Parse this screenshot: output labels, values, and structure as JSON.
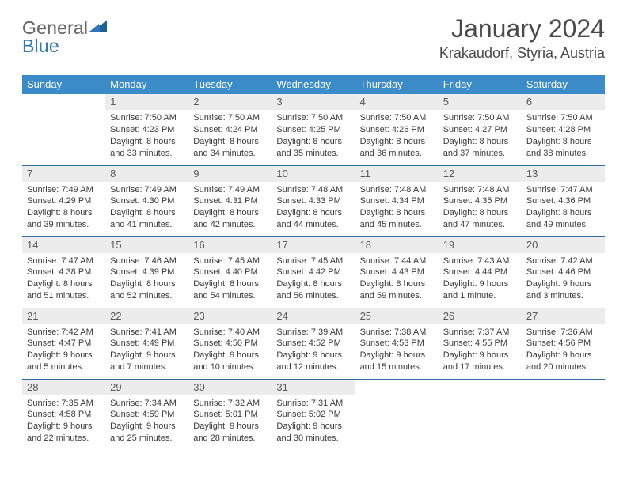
{
  "logo": {
    "general": "General",
    "blue": "Blue"
  },
  "title": "January 2024",
  "location": "Krakaudorf, Styria, Austria",
  "colors": {
    "header_bg": "#3b8bc9",
    "header_text": "#ffffff",
    "daynum_bg": "#ececec",
    "cell_border": "#2e6fa8",
    "logo_blue": "#2e77b8",
    "logo_gray": "#6a6a6a"
  },
  "days_of_week": [
    "Sunday",
    "Monday",
    "Tuesday",
    "Wednesday",
    "Thursday",
    "Friday",
    "Saturday"
  ],
  "weeks": [
    [
      null,
      {
        "n": "1",
        "sunrise": "Sunrise: 7:50 AM",
        "sunset": "Sunset: 4:23 PM",
        "day1": "Daylight: 8 hours",
        "day2": "and 33 minutes."
      },
      {
        "n": "2",
        "sunrise": "Sunrise: 7:50 AM",
        "sunset": "Sunset: 4:24 PM",
        "day1": "Daylight: 8 hours",
        "day2": "and 34 minutes."
      },
      {
        "n": "3",
        "sunrise": "Sunrise: 7:50 AM",
        "sunset": "Sunset: 4:25 PM",
        "day1": "Daylight: 8 hours",
        "day2": "and 35 minutes."
      },
      {
        "n": "4",
        "sunrise": "Sunrise: 7:50 AM",
        "sunset": "Sunset: 4:26 PM",
        "day1": "Daylight: 8 hours",
        "day2": "and 36 minutes."
      },
      {
        "n": "5",
        "sunrise": "Sunrise: 7:50 AM",
        "sunset": "Sunset: 4:27 PM",
        "day1": "Daylight: 8 hours",
        "day2": "and 37 minutes."
      },
      {
        "n": "6",
        "sunrise": "Sunrise: 7:50 AM",
        "sunset": "Sunset: 4:28 PM",
        "day1": "Daylight: 8 hours",
        "day2": "and 38 minutes."
      }
    ],
    [
      {
        "n": "7",
        "sunrise": "Sunrise: 7:49 AM",
        "sunset": "Sunset: 4:29 PM",
        "day1": "Daylight: 8 hours",
        "day2": "and 39 minutes."
      },
      {
        "n": "8",
        "sunrise": "Sunrise: 7:49 AM",
        "sunset": "Sunset: 4:30 PM",
        "day1": "Daylight: 8 hours",
        "day2": "and 41 minutes."
      },
      {
        "n": "9",
        "sunrise": "Sunrise: 7:49 AM",
        "sunset": "Sunset: 4:31 PM",
        "day1": "Daylight: 8 hours",
        "day2": "and 42 minutes."
      },
      {
        "n": "10",
        "sunrise": "Sunrise: 7:48 AM",
        "sunset": "Sunset: 4:33 PM",
        "day1": "Daylight: 8 hours",
        "day2": "and 44 minutes."
      },
      {
        "n": "11",
        "sunrise": "Sunrise: 7:48 AM",
        "sunset": "Sunset: 4:34 PM",
        "day1": "Daylight: 8 hours",
        "day2": "and 45 minutes."
      },
      {
        "n": "12",
        "sunrise": "Sunrise: 7:48 AM",
        "sunset": "Sunset: 4:35 PM",
        "day1": "Daylight: 8 hours",
        "day2": "and 47 minutes."
      },
      {
        "n": "13",
        "sunrise": "Sunrise: 7:47 AM",
        "sunset": "Sunset: 4:36 PM",
        "day1": "Daylight: 8 hours",
        "day2": "and 49 minutes."
      }
    ],
    [
      {
        "n": "14",
        "sunrise": "Sunrise: 7:47 AM",
        "sunset": "Sunset: 4:38 PM",
        "day1": "Daylight: 8 hours",
        "day2": "and 51 minutes."
      },
      {
        "n": "15",
        "sunrise": "Sunrise: 7:46 AM",
        "sunset": "Sunset: 4:39 PM",
        "day1": "Daylight: 8 hours",
        "day2": "and 52 minutes."
      },
      {
        "n": "16",
        "sunrise": "Sunrise: 7:45 AM",
        "sunset": "Sunset: 4:40 PM",
        "day1": "Daylight: 8 hours",
        "day2": "and 54 minutes."
      },
      {
        "n": "17",
        "sunrise": "Sunrise: 7:45 AM",
        "sunset": "Sunset: 4:42 PM",
        "day1": "Daylight: 8 hours",
        "day2": "and 56 minutes."
      },
      {
        "n": "18",
        "sunrise": "Sunrise: 7:44 AM",
        "sunset": "Sunset: 4:43 PM",
        "day1": "Daylight: 8 hours",
        "day2": "and 59 minutes."
      },
      {
        "n": "19",
        "sunrise": "Sunrise: 7:43 AM",
        "sunset": "Sunset: 4:44 PM",
        "day1": "Daylight: 9 hours",
        "day2": "and 1 minute."
      },
      {
        "n": "20",
        "sunrise": "Sunrise: 7:42 AM",
        "sunset": "Sunset: 4:46 PM",
        "day1": "Daylight: 9 hours",
        "day2": "and 3 minutes."
      }
    ],
    [
      {
        "n": "21",
        "sunrise": "Sunrise: 7:42 AM",
        "sunset": "Sunset: 4:47 PM",
        "day1": "Daylight: 9 hours",
        "day2": "and 5 minutes."
      },
      {
        "n": "22",
        "sunrise": "Sunrise: 7:41 AM",
        "sunset": "Sunset: 4:49 PM",
        "day1": "Daylight: 9 hours",
        "day2": "and 7 minutes."
      },
      {
        "n": "23",
        "sunrise": "Sunrise: 7:40 AM",
        "sunset": "Sunset: 4:50 PM",
        "day1": "Daylight: 9 hours",
        "day2": "and 10 minutes."
      },
      {
        "n": "24",
        "sunrise": "Sunrise: 7:39 AM",
        "sunset": "Sunset: 4:52 PM",
        "day1": "Daylight: 9 hours",
        "day2": "and 12 minutes."
      },
      {
        "n": "25",
        "sunrise": "Sunrise: 7:38 AM",
        "sunset": "Sunset: 4:53 PM",
        "day1": "Daylight: 9 hours",
        "day2": "and 15 minutes."
      },
      {
        "n": "26",
        "sunrise": "Sunrise: 7:37 AM",
        "sunset": "Sunset: 4:55 PM",
        "day1": "Daylight: 9 hours",
        "day2": "and 17 minutes."
      },
      {
        "n": "27",
        "sunrise": "Sunrise: 7:36 AM",
        "sunset": "Sunset: 4:56 PM",
        "day1": "Daylight: 9 hours",
        "day2": "and 20 minutes."
      }
    ],
    [
      {
        "n": "28",
        "sunrise": "Sunrise: 7:35 AM",
        "sunset": "Sunset: 4:58 PM",
        "day1": "Daylight: 9 hours",
        "day2": "and 22 minutes."
      },
      {
        "n": "29",
        "sunrise": "Sunrise: 7:34 AM",
        "sunset": "Sunset: 4:59 PM",
        "day1": "Daylight: 9 hours",
        "day2": "and 25 minutes."
      },
      {
        "n": "30",
        "sunrise": "Sunrise: 7:32 AM",
        "sunset": "Sunset: 5:01 PM",
        "day1": "Daylight: 9 hours",
        "day2": "and 28 minutes."
      },
      {
        "n": "31",
        "sunrise": "Sunrise: 7:31 AM",
        "sunset": "Sunset: 5:02 PM",
        "day1": "Daylight: 9 hours",
        "day2": "and 30 minutes."
      },
      null,
      null,
      null
    ]
  ]
}
